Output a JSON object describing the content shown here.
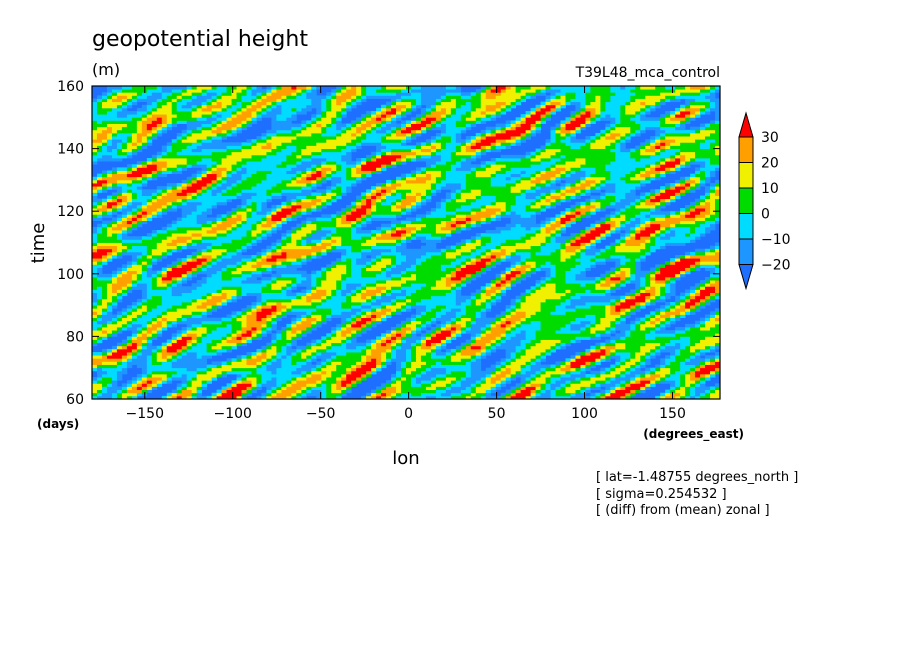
{
  "chart_data": {
    "type": "heatmap",
    "title": "geopotential height",
    "subtitle": "(m)",
    "run_label": "T39L48_mca_control",
    "xlabel": "lon",
    "x_unit_label": "(degrees_east)",
    "ylabel": "time",
    "y_unit_label": "(days)",
    "xlim": [
      -180,
      177
    ],
    "ylim": [
      60,
      160
    ],
    "x_ticks": [
      -150,
      -100,
      -50,
      0,
      50,
      100,
      150
    ],
    "y_ticks": [
      60,
      80,
      100,
      120,
      140,
      160
    ],
    "colorbar": {
      "levels": [
        -20,
        -10,
        0,
        10,
        20,
        30
      ],
      "colors": [
        "#1e6eff",
        "#1e96ff",
        "#00dcff",
        "#00dc00",
        "#f0f000",
        "#ffa000",
        "#ff0000"
      ],
      "extend": "both"
    },
    "notes": [
      "[ lat=-1.48755 degrees_north ]",
      "[ sigma=0.254532 ]",
      "[ (diff) from (mean) zonal ]"
    ],
    "grid": false
  }
}
